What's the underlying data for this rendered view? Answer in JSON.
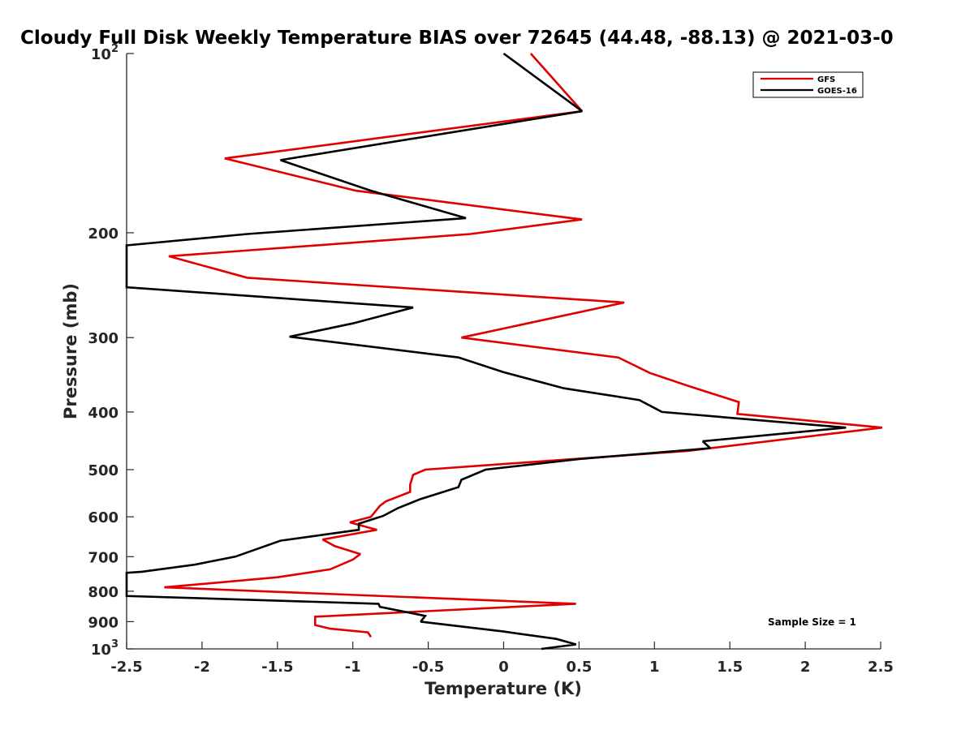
{
  "chart_data": {
    "type": "line",
    "title": "Cloudy Full Disk Weekly Temperature BIAS over 72645 (44.48, -88.13) @ 2021-03-0",
    "xlabel": "Temperature (K)",
    "ylabel": "Pressure (mb)",
    "xlim": [
      -2.5,
      2.5
    ],
    "ylim": [
      100,
      1000
    ],
    "yscale": "log",
    "y_reversed": true,
    "xticks": [
      -2.5,
      -2,
      -1.5,
      -1,
      -0.5,
      0,
      0.5,
      1,
      1.5,
      2,
      2.5
    ],
    "xtick_labels": [
      "-2.5",
      "-2",
      "-1.5",
      "-1",
      "-0.5",
      "0",
      "0.5",
      "1",
      "1.5",
      "2",
      "2.5"
    ],
    "yticks": [
      {
        "value": 100,
        "base": "10",
        "exp": "2"
      },
      {
        "value": 200,
        "base": "200",
        "exp": ""
      },
      {
        "value": 300,
        "base": "300",
        "exp": ""
      },
      {
        "value": 400,
        "base": "400",
        "exp": ""
      },
      {
        "value": 500,
        "base": "500",
        "exp": ""
      },
      {
        "value": 600,
        "base": "600",
        "exp": ""
      },
      {
        "value": 700,
        "base": "700",
        "exp": ""
      },
      {
        "value": 800,
        "base": "800",
        "exp": ""
      },
      {
        "value": 900,
        "base": "900",
        "exp": ""
      },
      {
        "value": 1000,
        "base": "10",
        "exp": "3"
      }
    ],
    "grid": false,
    "legend_position": "top-right",
    "annotation": "Sample Size = 1",
    "series": [
      {
        "name": "GFS",
        "color": "#e00000",
        "points": [
          [
            0.18,
            100
          ],
          [
            0.52,
            125
          ],
          [
            -1.85,
            150
          ],
          [
            -0.98,
            170
          ],
          [
            0.52,
            190
          ],
          [
            -0.22,
            201
          ],
          [
            -2.22,
            219
          ],
          [
            -1.7,
            238
          ],
          [
            0.8,
            262
          ],
          [
            -0.28,
            300
          ],
          [
            0.76,
            324
          ],
          [
            0.97,
            344
          ],
          [
            1.23,
            362
          ],
          [
            1.56,
            385
          ],
          [
            1.55,
            403
          ],
          [
            2.51,
            425
          ],
          [
            1.22,
            465
          ],
          [
            -0.52,
            500
          ],
          [
            -0.6,
            510
          ],
          [
            -0.62,
            530
          ],
          [
            -0.62,
            545
          ],
          [
            -0.78,
            565
          ],
          [
            -0.82,
            575
          ],
          [
            -0.88,
            600
          ],
          [
            -1.02,
            613
          ],
          [
            -0.84,
            631
          ],
          [
            -1.2,
            655
          ],
          [
            -1.12,
            672
          ],
          [
            -0.95,
            693
          ],
          [
            -1.0,
            708
          ],
          [
            -1.15,
            735
          ],
          [
            -1.5,
            758
          ],
          [
            -2.25,
            788
          ],
          [
            0.48,
            840
          ],
          [
            -1.25,
            883
          ],
          [
            -1.25,
            912
          ],
          [
            -1.15,
            925
          ],
          [
            -0.9,
            938
          ],
          [
            -0.88,
            955
          ]
        ]
      },
      {
        "name": "GOES-16",
        "color": "#000000",
        "points": [
          [
            0.0,
            100
          ],
          [
            0.52,
            125
          ],
          [
            -1.48,
            151
          ],
          [
            -0.88,
            170
          ],
          [
            -0.25,
            189
          ],
          [
            -1.7,
            201
          ],
          [
            -2.5,
            210
          ],
          [
            -2.5,
            247
          ],
          [
            -0.6,
            267
          ],
          [
            -1.0,
            284
          ],
          [
            -1.42,
            299
          ],
          [
            -0.3,
            324
          ],
          [
            0.0,
            343
          ],
          [
            0.4,
            365
          ],
          [
            0.9,
            382
          ],
          [
            1.05,
            400
          ],
          [
            2.27,
            425
          ],
          [
            1.32,
            448
          ],
          [
            1.37,
            460
          ],
          [
            0.5,
            480
          ],
          [
            -0.12,
            500
          ],
          [
            -0.28,
            520
          ],
          [
            -0.3,
            535
          ],
          [
            -0.55,
            560
          ],
          [
            -0.7,
            580
          ],
          [
            -0.8,
            598
          ],
          [
            -0.96,
            616
          ],
          [
            -0.96,
            631
          ],
          [
            -1.48,
            658
          ],
          [
            -1.78,
            700
          ],
          [
            -2.05,
            722
          ],
          [
            -2.4,
            742
          ],
          [
            -2.5,
            745
          ],
          [
            -2.5,
            815
          ],
          [
            -0.83,
            840
          ],
          [
            -0.82,
            850
          ],
          [
            -0.52,
            880
          ],
          [
            -0.55,
            900
          ],
          [
            0.0,
            935
          ],
          [
            0.35,
            962
          ],
          [
            0.48,
            983
          ],
          [
            0.25,
            1000
          ]
        ]
      }
    ]
  }
}
